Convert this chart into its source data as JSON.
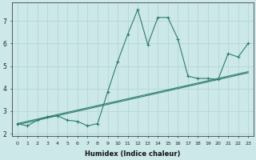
{
  "xlabel": "Humidex (Indice chaleur)",
  "bg_color": "#cce8e8",
  "line_color": "#2d7d6e",
  "grid_color": "#b8d8d8",
  "x_main": [
    0,
    1,
    2,
    3,
    4,
    5,
    6,
    7,
    8,
    9,
    10,
    11,
    12,
    13,
    14,
    15,
    16,
    17,
    18,
    19,
    20,
    21,
    22,
    23
  ],
  "y_zigzag": [
    2.45,
    2.35,
    2.6,
    2.75,
    2.8,
    2.6,
    2.55,
    2.35,
    2.45,
    3.85,
    5.2,
    6.4,
    7.5,
    5.95,
    7.15,
    7.15,
    6.2,
    4.55,
    4.45,
    4.45,
    4.4,
    5.55,
    5.4,
    6.0
  ],
  "y_trend_upper": [
    2.45,
    2.55,
    2.65,
    2.75,
    2.85,
    2.95,
    3.05,
    3.15,
    3.25,
    3.35,
    3.45,
    3.55,
    3.65,
    3.75,
    3.85,
    3.95,
    4.05,
    4.15,
    4.25,
    4.35,
    4.45,
    4.55,
    4.65,
    4.75
  ],
  "y_trend_lower": [
    2.4,
    2.5,
    2.6,
    2.7,
    2.8,
    2.9,
    3.0,
    3.1,
    3.2,
    3.3,
    3.4,
    3.5,
    3.6,
    3.7,
    3.8,
    3.9,
    4.0,
    4.1,
    4.2,
    4.3,
    4.4,
    4.5,
    4.6,
    4.7
  ],
  "xlim": [
    -0.5,
    23.5
  ],
  "ylim": [
    1.9,
    7.8
  ],
  "xticks": [
    0,
    1,
    2,
    3,
    4,
    5,
    6,
    7,
    8,
    9,
    10,
    11,
    12,
    13,
    14,
    15,
    16,
    17,
    18,
    19,
    20,
    21,
    22,
    23
  ],
  "yticks": [
    2,
    3,
    4,
    5,
    6,
    7
  ]
}
